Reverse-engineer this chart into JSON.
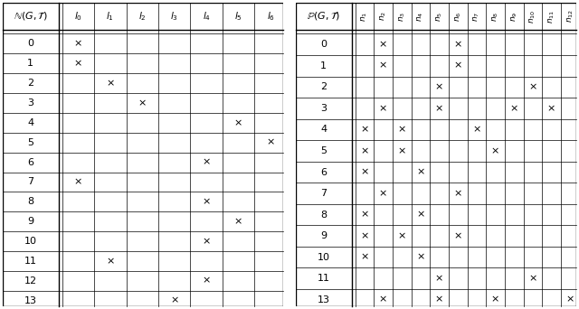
{
  "table1_title": "$\\mathbb{N}(G, \\mathcal{T})$",
  "table1_cols": [
    "$l_0$",
    "$l_1$",
    "$l_2$",
    "$l_3$",
    "$l_4$",
    "$l_5$",
    "$l_6$"
  ],
  "table1_rows": [
    0,
    1,
    2,
    3,
    4,
    5,
    6,
    7,
    8,
    9,
    10,
    11,
    12,
    13
  ],
  "table1_marks": [
    [
      0,
      [
        0
      ]
    ],
    [
      1,
      [
        0
      ]
    ],
    [
      2,
      [
        1
      ]
    ],
    [
      3,
      [
        2
      ]
    ],
    [
      4,
      [
        5
      ]
    ],
    [
      5,
      [
        6
      ]
    ],
    [
      6,
      [
        4
      ]
    ],
    [
      7,
      [
        0
      ]
    ],
    [
      8,
      [
        4
      ]
    ],
    [
      9,
      [
        5
      ]
    ],
    [
      10,
      [
        4
      ]
    ],
    [
      11,
      [
        1
      ]
    ],
    [
      12,
      [
        4
      ]
    ],
    [
      13,
      [
        3
      ]
    ]
  ],
  "table2_title": "$\\mathbb{P}(G, \\mathcal{T})$",
  "table2_cols": [
    "$n_1$",
    "$n_2$",
    "$n_3$",
    "$n_4$",
    "$n_5$",
    "$n_6$",
    "$n_7$",
    "$n_8$",
    "$n_9$",
    "$n_{10}$",
    "$n_{11}$",
    "$n_{12}$"
  ],
  "table2_rows": [
    0,
    1,
    2,
    3,
    4,
    5,
    6,
    7,
    8,
    9,
    10,
    11,
    13
  ],
  "table2_marks": [
    [
      0,
      [
        1,
        5
      ]
    ],
    [
      1,
      [
        1,
        5
      ]
    ],
    [
      2,
      [
        4,
        9
      ]
    ],
    [
      3,
      [
        1,
        4,
        8,
        10
      ]
    ],
    [
      4,
      [
        0,
        2,
        6
      ]
    ],
    [
      5,
      [
        0,
        2,
        7
      ]
    ],
    [
      6,
      [
        0,
        3
      ]
    ],
    [
      7,
      [
        1,
        5
      ]
    ],
    [
      8,
      [
        0,
        3
      ]
    ],
    [
      9,
      [
        0,
        2,
        5
      ]
    ],
    [
      10,
      [
        0,
        3
      ]
    ],
    [
      11,
      [
        4,
        9
      ]
    ],
    [
      13,
      [
        1,
        4,
        7,
        11
      ]
    ]
  ],
  "mark_char": "×",
  "bg_color": "white",
  "text_color": "black"
}
